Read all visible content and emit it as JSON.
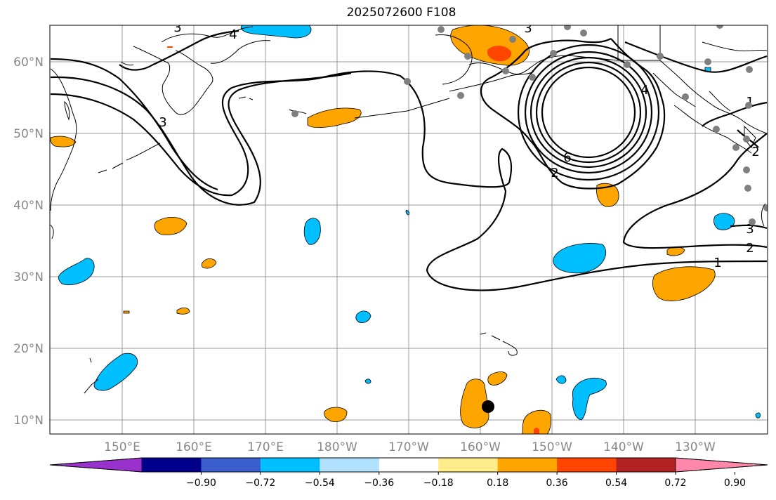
{
  "title": "2025072600 F108",
  "lat_labels": [
    "60°N",
    "50°N",
    "40°N",
    "30°N",
    "20°N",
    "10°N"
  ],
  "lon_labels": [
    "150°E",
    "160°E",
    "170°E",
    "180°W",
    "170°W",
    "160°W",
    "150°W",
    "140°W",
    "130°W"
  ],
  "contour_labels": [
    "3",
    "4",
    "3",
    "3",
    "4",
    "6",
    "2",
    "1",
    "1",
    "2",
    "3",
    "2"
  ],
  "colorbar": {
    "ticks": [
      "−0.90",
      "−0.72",
      "−0.54",
      "−0.36",
      "−0.18",
      "0.18",
      "0.36",
      "0.54",
      "0.72",
      "0.90"
    ],
    "colors": [
      "#9932cc",
      "#00008b",
      "#3a5fcd",
      "#00bfff",
      "#b0e2ff",
      "#ffffff",
      "#ffec8b",
      "#ffa500",
      "#ff4500",
      "#b22222",
      "#ff88aa"
    ]
  },
  "colors": {
    "positive_anomaly": "#ffa500",
    "strong_positive": "#ff4500",
    "negative_anomaly": "#00bfff",
    "station_marker": "#808080",
    "storm_marker": "#000000"
  }
}
